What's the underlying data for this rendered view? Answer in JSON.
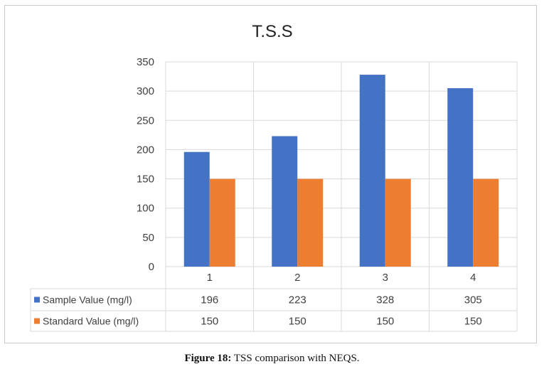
{
  "colors": {
    "sample": "#4472C4",
    "standard": "#ED7D31",
    "grid": "#d9d9d9",
    "text": "#404040"
  },
  "caption": {
    "label": "Figure 18:",
    "text": "TSS comparison with NEQS."
  },
  "chart_data": {
    "type": "bar",
    "title": "T.S.S",
    "categories": [
      "1",
      "2",
      "3",
      "4"
    ],
    "series": [
      {
        "name": "Sample Value (mg/l)",
        "values": [
          196,
          223,
          328,
          305
        ],
        "display": [
          "196",
          "223",
          "328",
          "305"
        ]
      },
      {
        "name": "Standard Value (mg/l)",
        "values": [
          150,
          150,
          150,
          150
        ],
        "display": [
          "150",
          "150",
          "150",
          "150"
        ]
      }
    ],
    "ylim": [
      0,
      350
    ],
    "yticks": [
      0,
      50,
      100,
      150,
      200,
      250,
      300,
      350
    ],
    "grid": true,
    "legend": "data-table"
  }
}
